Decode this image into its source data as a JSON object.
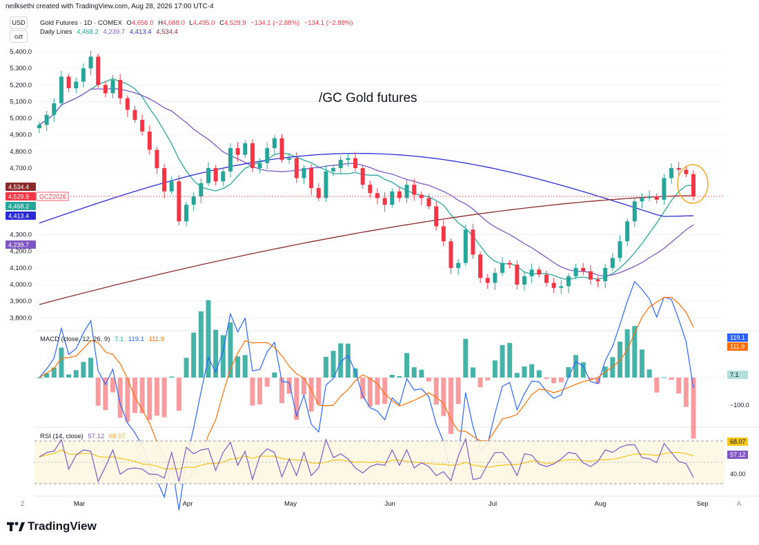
{
  "header": {
    "credit": "neilksethi created with TradingView.com, Aug 28, 2026 17:00 UTC-4"
  },
  "badges": {
    "currency": "USD",
    "unit": "ozt"
  },
  "legend": {
    "symbol": "Gold Futures · 1D · COMEX",
    "ohlc": {
      "o_label": "O",
      "o": "4,656.0",
      "h_label": "H",
      "h": "4,688.0",
      "l_label": "L",
      "l": "4,495.0",
      "c_label": "C",
      "c": "4,529.9",
      "change": "−134.1 (−2.88%)",
      "change2": "−134.1 (−2.88%)"
    },
    "lines_label": "Daily Lines",
    "lines_values": [
      "4,468.2",
      "4,239.7",
      "4,413.4",
      "4,534.4"
    ]
  },
  "annotation": "/GC Gold futures",
  "price_axis": {
    "ticks": [
      "5,400.0",
      "5,300.0",
      "5,200.0",
      "5,100.0",
      "5,000.0",
      "4,900.0",
      "4,800.0",
      "4,700.0",
      "4,300.0",
      "4,200.0",
      "4,100.0",
      "4,000.0",
      "3,900.0",
      "3,800.0"
    ],
    "labels": [
      {
        "text": "4,534.4",
        "color": "#8b2a2a"
      },
      {
        "text": "4,529.9",
        "color": "#f23645"
      },
      {
        "text": "GCZ2026",
        "color": "#f23645"
      },
      {
        "text": "4,468.2",
        "color": "#26a69a"
      },
      {
        "text": "4,413.4",
        "color": "#2b2bd6"
      },
      {
        "text": "4,239.7",
        "color": "#7e57c2"
      }
    ]
  },
  "x_axis": {
    "labels": [
      "Mar",
      "Apr",
      "May",
      "Jun",
      "Jul",
      "Aug",
      "Sep"
    ],
    "corner_left": "Z",
    "corner_right": "A"
  },
  "macd": {
    "label": "MACD (close, 12, 26, 9)",
    "values": [
      "7.1",
      "119.1",
      "111.9"
    ],
    "axis_labels": [
      "119.1",
      "111.9",
      "7.1",
      "−100.0"
    ]
  },
  "rsi": {
    "label": "RSI (14, close)",
    "values": [
      "57.12",
      "68.07"
    ],
    "axis_labels": [
      "68.07",
      "57.12",
      "40.00"
    ],
    "hidden_label": "60.00"
  },
  "colors": {
    "up": "#26a69a",
    "down": "#f23645",
    "sma20": "#26a69a",
    "sma50": "#7e57c2",
    "sma100": "#2b2bd6",
    "sma200": "#8b2a2a",
    "macd": "#2962ff",
    "signal": "#ff6d00",
    "rsi": "#7e57c2",
    "rsi_ma": "#f5c518",
    "highlight": "#f5a623"
  },
  "footer": {
    "brand": "TradingView"
  },
  "chart_data": {
    "type": "candlestick",
    "title": "Gold Futures · 1D · COMEX",
    "ylim": [
      3800,
      5450
    ],
    "last_close": 4529.9,
    "ohlc_last": {
      "open": 4656.0,
      "high": 4688.0,
      "low": 4495.0,
      "close": 4529.9
    },
    "moving_averages": {
      "sma20": 4468.2,
      "sma50": 4239.7,
      "sma100": 4413.4,
      "sma200": 4534.4
    },
    "x_months": [
      "Mar",
      "Apr",
      "May",
      "Jun",
      "Jul",
      "Aug",
      "Sep"
    ],
    "closes": [
      4960,
      5020,
      5090,
      5250,
      5180,
      5220,
      5300,
      5370,
      5200,
      5150,
      5230,
      5120,
      5050,
      4990,
      4920,
      4810,
      4700,
      4560,
      4620,
      4380,
      4480,
      4530,
      4610,
      4700,
      4620,
      4680,
      4820,
      4780,
      4850,
      4700,
      4730,
      4820,
      4880,
      4750,
      4760,
      4640,
      4700,
      4580,
      4520,
      4680,
      4700,
      4750,
      4760,
      4700,
      4600,
      4550,
      4520,
      4480,
      4560,
      4520,
      4600,
      4540,
      4520,
      4470,
      4350,
      4260,
      4100,
      4130,
      4330,
      4180,
      4040,
      4010,
      4070,
      4130,
      4120,
      4000,
      4050,
      4090,
      4060,
      4010,
      3980,
      3990,
      4050,
      4100,
      4080,
      4030,
      4020,
      4100,
      4160,
      4260,
      4380,
      4500,
      4520,
      4530,
      4510,
      4640,
      4700,
      4690,
      4664,
      4529.9
    ],
    "macd": {
      "macd_last": 119.1,
      "signal_last": 111.9,
      "histogram_last": 7.1,
      "axis_tick": -100.0
    },
    "rsi": {
      "rsi_last": 57.12,
      "rsi_ma_last": 68.07,
      "axis_tick": 40.0
    }
  }
}
